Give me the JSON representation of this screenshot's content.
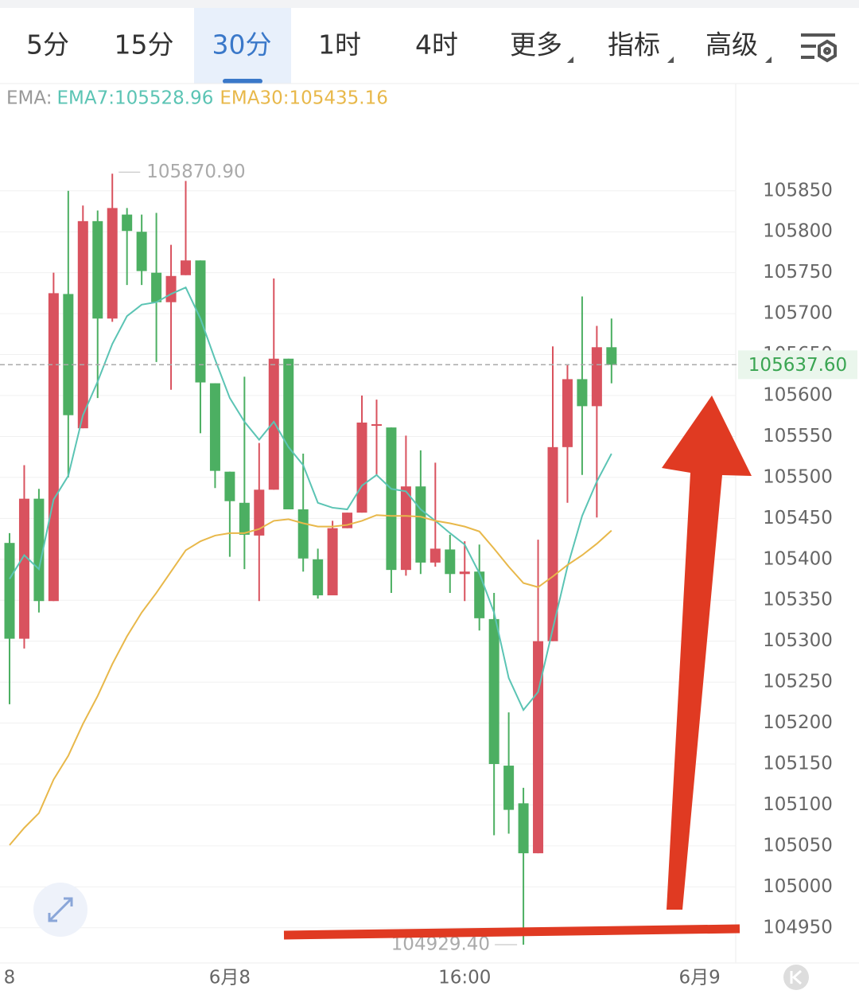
{
  "tabs": [
    "5分",
    "15分",
    "30分",
    "1时",
    "4时",
    "更多",
    "指标",
    "高级"
  ],
  "active_tab": 2,
  "chart_data": {
    "type": "candlestick",
    "indicator": "EMA:",
    "up_color": "#d9525e",
    "down_color": "#4caf62",
    "open": [
      105420,
      105303,
      105474,
      105349,
      105724,
      105560,
      105813,
      105694,
      105821,
      105800,
      105750,
      105714,
      105747,
      105765,
      105615,
      105507,
      105469,
      105429,
      105485,
      105645,
      105461,
      105400,
      105356,
      105438,
      105457,
      105563,
      105561,
      105387,
      105489,
      105396,
      105412,
      105382,
      105385,
      105327,
      105148,
      105102,
      105041,
      105300,
      105537,
      105620,
      105587,
      105659
    ],
    "high": [
      105432,
      105515,
      105486,
      105750,
      105850,
      105832,
      105826,
      105870.9,
      105829,
      105821,
      105823,
      105784,
      105862,
      105765,
      105615,
      105507,
      105623,
      105542,
      105743,
      105645,
      105529,
      105413,
      105447,
      105457,
      105600,
      105595,
      105561,
      105551,
      105533,
      105518,
      105430,
      105422,
      105418,
      105359,
      105213,
      105121,
      105424,
      105660,
      105638,
      105721,
      105685,
      105694
    ],
    "low": [
      105223,
      105291,
      105335,
      105349,
      105500,
      105560,
      105597,
      105690,
      105735,
      105735,
      105641,
      105607,
      105747,
      105554,
      105487,
      105403,
      105388,
      105349,
      105485,
      105461,
      105385,
      105352,
      105356,
      105438,
      105457,
      105502,
      105359,
      105380,
      105382,
      105391,
      105359,
      105349,
      105313,
      105063,
      105065,
      104929.4,
      105041,
      105300,
      105469,
      105503,
      105451,
      105615
    ],
    "close": [
      105303,
      105474,
      105349,
      105725,
      105576,
      105813,
      105694,
      105829,
      105801,
      105752,
      105714,
      105746,
      105765,
      105616,
      105508,
      105471,
      105430,
      105485,
      105645,
      105461,
      105401,
      105356,
      105438,
      105457,
      105567,
      105565,
      105387,
      105489,
      105396,
      105413,
      105382,
      105385,
      105328,
      105150,
      105094,
      105041,
      105300,
      105537,
      105620,
      105587,
      105659,
      105637.6
    ],
    "series": [
      {
        "name": "EMA7",
        "legend": "EMA7:105528.96",
        "color": "#5bc4b4",
        "values": [
          105376,
          105405,
          105388,
          105473,
          105502,
          105576,
          105617,
          105663,
          105697,
          105711,
          105714,
          105724,
          105732,
          105694,
          105644,
          105597,
          105568,
          105546,
          105568,
          105537,
          105515,
          105469,
          105463,
          105461,
          105490,
          105503,
          105486,
          105483,
          105461,
          105447,
          105432,
          105418,
          105383,
          105335,
          105255,
          105216,
          105238,
          105315,
          105391,
          105453,
          105495,
          105528.96
        ]
      },
      {
        "name": "EMA30",
        "legend": "EMA30:105435.16",
        "color": "#e8b84a",
        "values": [
          105051,
          105072,
          105090,
          105131,
          105160,
          105199,
          105233,
          105272,
          105306,
          105335,
          105359,
          105385,
          105411,
          105422,
          105429,
          105432,
          105432,
          105437,
          105447,
          105449,
          105444,
          105440,
          105440,
          105442,
          105447,
          105454,
          105453,
          105453,
          105452,
          105447,
          105444,
          105440,
          105434,
          105413,
          105391,
          105371,
          105366,
          105379,
          105393,
          105405,
          105419,
          105435.16
        ]
      }
    ],
    "ylim": [
      104907,
      105981
    ],
    "yticks": [
      104950,
      105000,
      105050,
      105100,
      105150,
      105200,
      105250,
      105300,
      105350,
      105400,
      105450,
      105500,
      105550,
      105600,
      105650,
      105700,
      105750,
      105800,
      105850
    ],
    "xlim": [
      -0.65,
      49.46
    ],
    "xticks": [
      {
        "value": 0,
        "label": "8"
      },
      {
        "value": 15,
        "label": "6月8"
      },
      {
        "value": 31,
        "label": "16:00"
      },
      {
        "value": 47,
        "label": "6月9"
      }
    ],
    "high_marker": {
      "value": 105870.9,
      "label": "105870.90"
    },
    "low_marker": {
      "value": 104929.4,
      "label": "104929.40"
    },
    "last_price": {
      "value": 105637.6,
      "label": "105637.60"
    },
    "grid": true
  }
}
